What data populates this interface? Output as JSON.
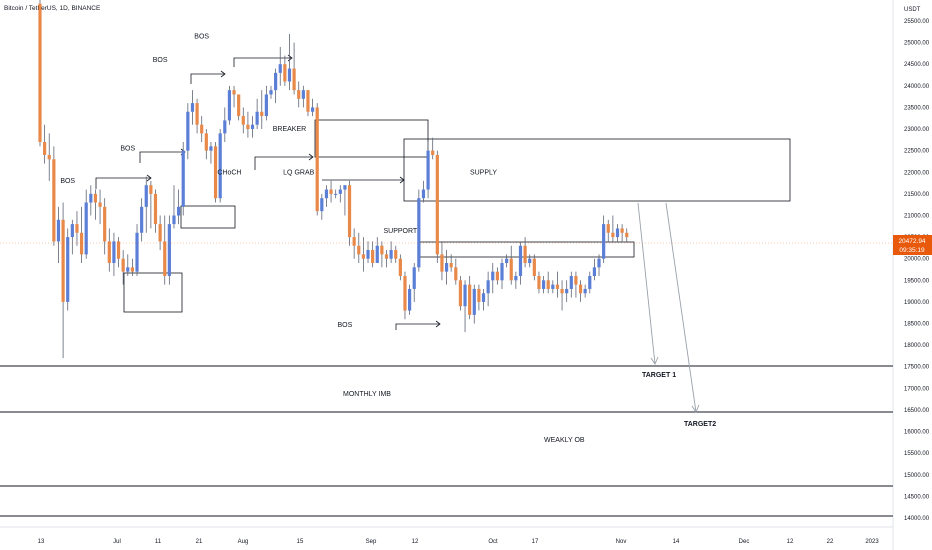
{
  "chart_data": {
    "type": "candlestick",
    "title": "Bitcoin / TetherUS, 1D, BINANCE",
    "currency": "USDT",
    "ylim": [
      13800,
      25900
    ],
    "y_ticks": [
      25500,
      25000,
      24500,
      24000,
      23500,
      23000,
      22500,
      22000,
      21500,
      21000,
      20500,
      20000,
      19500,
      19000,
      18500,
      18000,
      17500,
      17000,
      16500,
      16000,
      15500,
      15000,
      14500,
      14000
    ],
    "x_ticks": [
      "13",
      "Jul",
      "11",
      "21",
      "Aug",
      "15",
      "Sep",
      "12",
      "Oct",
      "17",
      "Nov",
      "14",
      "Dec",
      "12",
      "22",
      "2023"
    ],
    "current_price": "20472.94",
    "countdown": "09:35:19",
    "colors": {
      "up": "#5b7fd6",
      "down": "#e8894a",
      "wick": "#5d6475",
      "line": "#131722",
      "price_tag": "#e8590c",
      "arrow": "#9aa0ab"
    },
    "candles": [
      [
        25900,
        26000,
        22600,
        22700
      ],
      [
        22700,
        23100,
        22200,
        22400
      ],
      [
        22400,
        22900,
        21800,
        22300
      ],
      [
        22300,
        22600,
        20300,
        20400
      ],
      [
        20400,
        21200,
        19900,
        20900
      ],
      [
        20900,
        21300,
        17700,
        19000
      ],
      [
        19000,
        20700,
        18800,
        20500
      ],
      [
        20500,
        20900,
        20100,
        20800
      ],
      [
        20800,
        21100,
        20300,
        20600
      ],
      [
        20600,
        21200,
        19900,
        20100
      ],
      [
        20100,
        21600,
        20000,
        21300
      ],
      [
        21300,
        21700,
        21000,
        21500
      ],
      [
        21500,
        21600,
        20900,
        21300
      ],
      [
        21300,
        21600,
        20800,
        21200
      ],
      [
        21200,
        21400,
        20100,
        20400
      ],
      [
        20400,
        20700,
        19700,
        19900
      ],
      [
        19900,
        20600,
        19600,
        20400
      ],
      [
        20400,
        20500,
        19800,
        20000
      ],
      [
        20000,
        20200,
        19400,
        19700
      ],
      [
        19700,
        20100,
        19600,
        19800
      ],
      [
        19800,
        20000,
        19600,
        19700
      ],
      [
        19700,
        20800,
        19600,
        20600
      ],
      [
        20600,
        21400,
        20400,
        21200
      ],
      [
        21200,
        21900,
        20600,
        21700
      ],
      [
        21700,
        21800,
        20700,
        21500
      ],
      [
        21500,
        21600,
        20600,
        20800
      ],
      [
        20800,
        21000,
        20200,
        20400
      ],
      [
        20400,
        21000,
        19400,
        19600
      ],
      [
        19600,
        21000,
        19400,
        20800
      ],
      [
        20800,
        21700,
        20700,
        21000
      ],
      [
        21000,
        21600,
        20800,
        21200
      ],
      [
        21200,
        22700,
        21000,
        22500
      ],
      [
        22500,
        23600,
        22300,
        23400
      ],
      [
        23400,
        23900,
        23100,
        23600
      ],
      [
        23600,
        23700,
        22900,
        23100
      ],
      [
        23100,
        23300,
        22700,
        22900
      ],
      [
        22900,
        23000,
        22300,
        22500
      ],
      [
        22500,
        22700,
        22200,
        22600
      ],
      [
        22600,
        22700,
        21300,
        21400
      ],
      [
        21400,
        23000,
        21300,
        22900
      ],
      [
        22900,
        23500,
        22700,
        23200
      ],
      [
        23200,
        24000,
        23100,
        23900
      ],
      [
        23900,
        24000,
        23500,
        23800
      ],
      [
        23800,
        23800,
        23200,
        23300
      ],
      [
        23300,
        23500,
        22900,
        23100
      ],
      [
        23100,
        23400,
        22800,
        23000
      ],
      [
        23000,
        23300,
        22800,
        23100
      ],
      [
        23100,
        23700,
        23000,
        23400
      ],
      [
        23400,
        23900,
        23000,
        23300
      ],
      [
        23300,
        24000,
        23200,
        23800
      ],
      [
        23800,
        24000,
        23700,
        23900
      ],
      [
        23900,
        24400,
        23600,
        24300
      ],
      [
        24300,
        24900,
        24000,
        24500
      ],
      [
        24500,
        24700,
        24000,
        24100
      ],
      [
        24100,
        25200,
        23900,
        24400
      ],
      [
        24400,
        25000,
        23800,
        23900
      ],
      [
        23900,
        24100,
        23500,
        23700
      ],
      [
        23700,
        24000,
        23500,
        23900
      ],
      [
        23900,
        23900,
        23300,
        23400
      ],
      [
        23400,
        23700,
        23300,
        23500
      ],
      [
        23500,
        23600,
        21000,
        21100
      ],
      [
        21100,
        21500,
        20900,
        21400
      ],
      [
        21400,
        21700,
        21200,
        21600
      ],
      [
        21600,
        21800,
        21300,
        21500
      ],
      [
        21500,
        21600,
        21400,
        21500
      ],
      [
        21500,
        21700,
        21300,
        21600
      ],
      [
        21600,
        21700,
        21000,
        21700
      ],
      [
        21700,
        21800,
        20300,
        20500
      ],
      [
        20500,
        20700,
        20000,
        20300
      ],
      [
        20300,
        20600,
        19900,
        20100
      ],
      [
        20100,
        20500,
        19700,
        20000
      ],
      [
        20000,
        20400,
        19900,
        20200
      ],
      [
        20200,
        20400,
        19800,
        19900
      ],
      [
        19900,
        20500,
        19900,
        20300
      ],
      [
        20300,
        20400,
        19800,
        20100
      ],
      [
        20100,
        20200,
        19800,
        20000
      ],
      [
        20000,
        20400,
        19900,
        20200
      ],
      [
        20200,
        20300,
        19900,
        20000
      ],
      [
        20000,
        20100,
        19500,
        19600
      ],
      [
        19600,
        19700,
        18600,
        18800
      ],
      [
        18800,
        19400,
        18700,
        19300
      ],
      [
        19300,
        19900,
        19000,
        19800
      ],
      [
        19800,
        21600,
        19700,
        21400
      ],
      [
        21400,
        21800,
        21300,
        21600
      ],
      [
        21600,
        22700,
        21400,
        22500
      ],
      [
        22500,
        22800,
        22300,
        22400
      ],
      [
        22400,
        22500,
        19900,
        20100
      ],
      [
        20100,
        20400,
        19500,
        19700
      ],
      [
        19700,
        20200,
        19400,
        19900
      ],
      [
        19900,
        20100,
        19700,
        19800
      ],
      [
        19800,
        20000,
        19400,
        19500
      ],
      [
        19500,
        19600,
        18800,
        18900
      ],
      [
        18900,
        19500,
        18300,
        19400
      ],
      [
        19400,
        19600,
        18600,
        18700
      ],
      [
        18700,
        19400,
        18500,
        19300
      ],
      [
        19300,
        19400,
        18800,
        19000
      ],
      [
        19000,
        19300,
        18800,
        19200
      ],
      [
        19200,
        19700,
        18900,
        19500
      ],
      [
        19500,
        19900,
        19200,
        19700
      ],
      [
        19700,
        19800,
        19400,
        19500
      ],
      [
        19500,
        20000,
        19300,
        19900
      ],
      [
        19900,
        20100,
        19800,
        20000
      ],
      [
        20000,
        20300,
        19400,
        19500
      ],
      [
        19500,
        19700,
        19300,
        19600
      ],
      [
        19600,
        20400,
        19400,
        20300
      ],
      [
        20300,
        20500,
        19800,
        19900
      ],
      [
        19900,
        20100,
        19800,
        20000
      ],
      [
        20000,
        20100,
        19500,
        19600
      ],
      [
        19600,
        19700,
        19200,
        19300
      ],
      [
        19300,
        19600,
        19200,
        19500
      ],
      [
        19500,
        19700,
        19200,
        19300
      ],
      [
        19300,
        19500,
        19200,
        19400
      ],
      [
        19400,
        19700,
        19100,
        19300
      ],
      [
        19300,
        19500,
        18800,
        19200
      ],
      [
        19200,
        19500,
        19000,
        19300
      ],
      [
        19300,
        19700,
        19100,
        19600
      ],
      [
        19600,
        19700,
        19100,
        19400
      ],
      [
        19400,
        19500,
        19000,
        19200
      ],
      [
        19200,
        19400,
        19100,
        19300
      ],
      [
        19300,
        19700,
        19200,
        19600
      ],
      [
        19600,
        20000,
        19500,
        19800
      ],
      [
        19800,
        20100,
        19600,
        20000
      ],
      [
        20000,
        21000,
        19900,
        20800
      ],
      [
        20800,
        20900,
        20400,
        20600
      ],
      [
        20600,
        21000,
        20400,
        20500
      ],
      [
        20500,
        20800,
        20400,
        20700
      ],
      [
        20700,
        20800,
        20400,
        20600
      ],
      [
        20600,
        20700,
        20400,
        20500
      ]
    ],
    "annotations": [
      {
        "text": "BOS",
        "x": 6,
        "y": 21750
      },
      {
        "text": "BOS",
        "x": 19,
        "y": 22500
      },
      {
        "text": "BOS",
        "x": 26,
        "y": 24550
      },
      {
        "text": "BOS",
        "x": 35,
        "y": 25100
      },
      {
        "text": "BREAKER",
        "x": 54,
        "y": 22950
      },
      {
        "text": "CHoCH",
        "x": 41,
        "y": 21950
      },
      {
        "text": "LQ GRAB",
        "x": 56,
        "y": 21950
      },
      {
        "text": "SUPPLY",
        "x": 96,
        "y": 21950
      },
      {
        "text": "SUPPORT",
        "x": 78,
        "y": 20600
      },
      {
        "text": "BOS",
        "x": 66,
        "y": 18420
      }
    ],
    "zones": [
      {
        "label": "MONTHLY IMB",
        "label_y": 17050
      },
      {
        "label": "WEAKLY OB",
        "label_y": 15950
      }
    ],
    "targets": [
      {
        "label": "TARGET 1",
        "y": 17000
      },
      {
        "label": "TARGET2",
        "y": 16400
      }
    ]
  }
}
